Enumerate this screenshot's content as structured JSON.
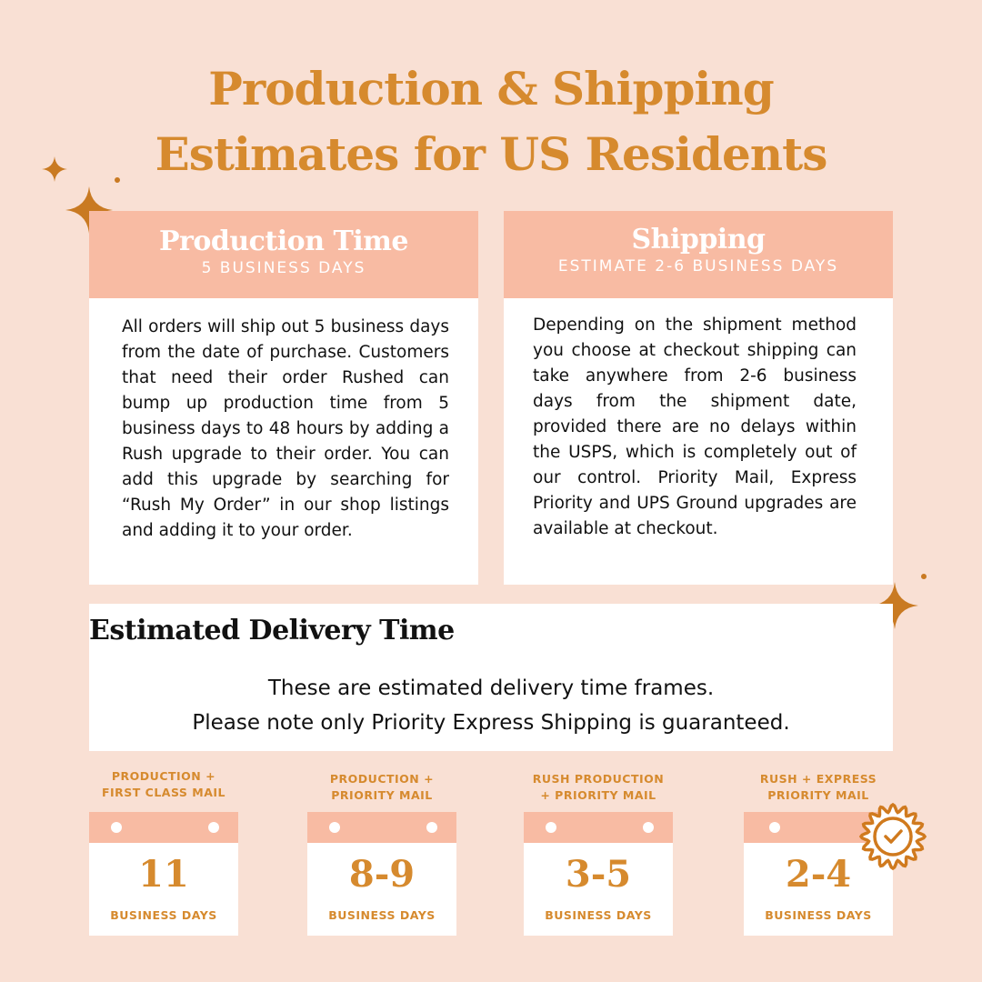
{
  "title": {
    "line1": "Production & Shipping",
    "line2": "Estimates for US Residents"
  },
  "production": {
    "heading": "Production Time",
    "subheading": "5 BUSINESS DAYS",
    "body": "All orders will ship out 5 business days from the date of purchase. Customers that need their order Rushed can bump up production time from 5 business days to 48 hours by adding a Rush upgrade to their order. You can add this upgrade by searching for “Rush My Order” in our shop listings and adding it to your order."
  },
  "shipping": {
    "heading": "Shipping",
    "subheading": "ESTIMATE 2-6 BUSINESS DAYS",
    "body": "Depending on the shipment method you choose at checkout shipping can take anywhere from 2-6 business days from the shipment date, provided there are no delays within the USPS, which is completely out of our control. Priority Mail, Express Priority and UPS Ground upgrades are available at checkout."
  },
  "delivery": {
    "heading": "Estimated Delivery Time",
    "line1": "These are estimated delivery time frames.",
    "line2": "Please note only Priority Express Shipping is guaranteed."
  },
  "options": [
    {
      "line1": "PRODUCTION +",
      "line2": "FIRST CLASS MAIL",
      "value": "11",
      "unit": "BUSINESS DAYS"
    },
    {
      "line1": "PRODUCTION +",
      "line2": "PRIORITY MAIL",
      "value": "8-9",
      "unit": "BUSINESS DAYS"
    },
    {
      "line1": "RUSH PRODUCTION",
      "line2": "+ PRIORITY MAIL",
      "value": "3-5",
      "unit": "BUSINESS DAYS"
    },
    {
      "line1": "RUSH + EXPRESS",
      "line2": "PRIORITY MAIL",
      "value": "2-4",
      "unit": "BUSINESS DAYS"
    }
  ],
  "colors": {
    "background": "#f9e0d4",
    "header": "#f8bba3",
    "accent": "#d68a2e"
  },
  "icons": [
    "sparkle-icon",
    "badge-check-icon"
  ]
}
